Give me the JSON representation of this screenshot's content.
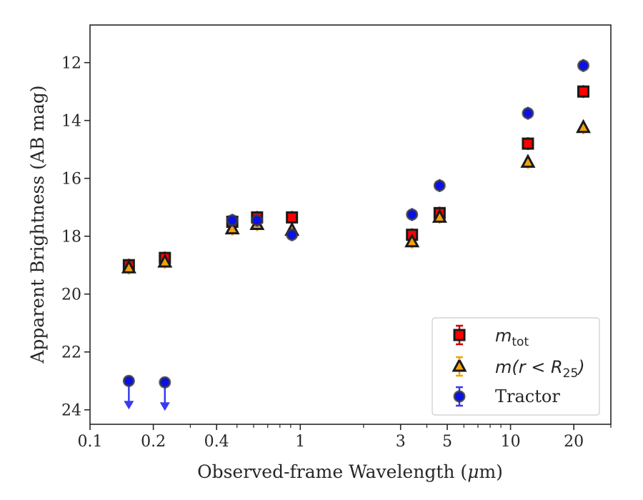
{
  "chart_data": {
    "type": "scatter",
    "xlabel_main": "Observed-frame Wavelength (",
    "xlabel_unit_mu": "μ",
    "xlabel_unit_rest": "m)",
    "ylabel": "Apparent Brightness (AB mag)",
    "xscale": "log",
    "xlim": [
      0.1,
      30
    ],
    "ylim": [
      24.5,
      10.7
    ],
    "y_inverted": true,
    "x_tick_labels": [
      "0.1",
      "0.2",
      "0.4",
      "1",
      "3",
      "5",
      "10",
      "20"
    ],
    "y_tick_labels": [
      "12",
      "14",
      "16",
      "18",
      "20",
      "22",
      "24"
    ],
    "legend_position": "lower-right",
    "series": [
      {
        "name": "m_tot",
        "legend_main": "m",
        "legend_sub": "tot",
        "marker": "square",
        "color": "#ff0000",
        "errorbar_color": "#d00000",
        "points": [
          {
            "x": 0.153,
            "y": 19.0
          },
          {
            "x": 0.227,
            "y": 18.75
          },
          {
            "x": 0.475,
            "y": 17.5
          },
          {
            "x": 0.623,
            "y": 17.35
          },
          {
            "x": 0.913,
            "y": 17.35
          },
          {
            "x": 3.4,
            "y": 17.95
          },
          {
            "x": 4.6,
            "y": 17.2
          },
          {
            "x": 12.1,
            "y": 14.8
          },
          {
            "x": 22.2,
            "y": 13.0
          }
        ]
      },
      {
        "name": "m(r < R25)",
        "legend_main": "m(r < R",
        "legend_sub": "25",
        "legend_close": ")",
        "marker": "triangle",
        "color": "#f5a10a",
        "errorbar_color": "#f5a10a",
        "points": [
          {
            "x": 0.153,
            "y": 19.1
          },
          {
            "x": 0.227,
            "y": 18.9
          },
          {
            "x": 0.475,
            "y": 17.75
          },
          {
            "x": 0.623,
            "y": 17.6
          },
          {
            "x": 0.913,
            "y": 17.8
          },
          {
            "x": 3.4,
            "y": 18.2
          },
          {
            "x": 4.6,
            "y": 17.35
          },
          {
            "x": 12.1,
            "y": 15.45
          },
          {
            "x": 22.2,
            "y": 14.25
          }
        ]
      },
      {
        "name": "Tractor",
        "legend_main": "Tractor",
        "marker": "circle",
        "color": "#0a10e8",
        "errorbar_color": "#3a3af0",
        "points": [
          {
            "x": 0.153,
            "y": 23.0,
            "upper_limit": true
          },
          {
            "x": 0.227,
            "y": 23.05,
            "upper_limit": true
          },
          {
            "x": 0.475,
            "y": 17.45
          },
          {
            "x": 0.623,
            "y": 17.45
          },
          {
            "x": 0.913,
            "y": 17.95
          },
          {
            "x": 3.4,
            "y": 17.25
          },
          {
            "x": 4.6,
            "y": 16.25
          },
          {
            "x": 12.1,
            "y": 13.75
          },
          {
            "x": 22.2,
            "y": 12.1
          }
        ]
      }
    ]
  }
}
